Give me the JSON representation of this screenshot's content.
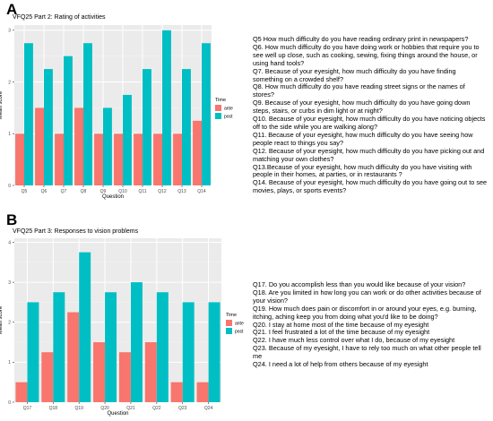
{
  "panels": [
    {
      "letter": "A",
      "notes": [
        "Q5 How much difficulty do you have reading ordinary print in newspapers?",
        "Q6. How much difficulty do you have doing work or hobbies that require you to see well up close, such as cooking, sewing, fixing things around the house, or using hand tools?",
        "Q7. Because of your eyesight, how much difficulty do you have finding something on a crowded shelf?",
        "Q8. How much difficulty do you have reading street signs or the names of stores?",
        "Q9. Because of your eyesight, how much difficulty do you have going down steps, stairs, or curbs in dim light or at night?",
        "Q10. Because of your eyesight, how much difficulty do you have noticing objects off to the side while you are walking along?",
        "Q11. Because of your eyesight, how much difficulty do you have seeing how people react to things you say?",
        "Q12. Because of your eyesight, how much difficulty do you have picking out and matching your own clothes?",
        "Q13.Because of your eyesight, how much difficulty do you have visiting with people in their homes, at parties, or in restaurants ?",
        "Q14. Because of your eyesight, how much difficulty do you have going out to see movies, plays, or sports events?"
      ]
    },
    {
      "letter": "B",
      "notes": [
        "Q17. Do you accomplish less than you would like because of your vision?",
        "Q18. Are you limited in how long you can work or do other activities because of your vision?",
        "Q19. How much does pain or discomfort in or around your eyes, e.g. burning, itching, aching keep you from doing what you'd like to be doing?",
        "Q20. I stay at home most of the time because of my eyesight",
        "Q21. I feel frustrated a lot of the time because of my eyesight",
        "Q22. I have much less control over what I do, because of my eyesight",
        "Q23. Because of my eyesight, I have to rely too much on what other people tell me",
        "Q24. I need a lot of help from others because of my eyesight"
      ]
    }
  ],
  "chart_data": [
    {
      "type": "bar",
      "title": "VFQ25 Part 2: Rating of activities",
      "xlabel": "Question",
      "ylabel": "Mean score",
      "ylim": [
        0,
        3.1
      ],
      "yticks": [
        0,
        1,
        2,
        3
      ],
      "grid": true,
      "legend": "right",
      "legend_title": "Time",
      "categories": [
        "Q5",
        "Q6",
        "Q7",
        "Q8",
        "Q9",
        "Q10",
        "Q11",
        "Q12",
        "Q13",
        "Q14"
      ],
      "series": [
        {
          "name": "ante",
          "color": "#F8766D",
          "values": [
            1,
            1.5,
            1,
            1.5,
            1,
            1,
            1,
            1,
            1,
            1.25
          ]
        },
        {
          "name": "post",
          "color": "#00BFC4",
          "values": [
            2.75,
            2.25,
            2.5,
            2.75,
            1.5,
            1.75,
            2.25,
            3,
            2.25,
            2.75
          ]
        }
      ]
    },
    {
      "type": "bar",
      "title": "VFQ25 Part 3: Responses to vision problems",
      "xlabel": "Question",
      "ylabel": "Mean score",
      "ylim": [
        0,
        4.1
      ],
      "yticks": [
        0,
        1,
        2,
        3,
        4
      ],
      "grid": true,
      "legend": "right",
      "legend_title": "Time",
      "categories": [
        "Q17",
        "Q18",
        "Q19",
        "Q20",
        "Q21",
        "Q22",
        "Q23",
        "Q24"
      ],
      "series": [
        {
          "name": "ante",
          "color": "#F8766D",
          "values": [
            0.5,
            1.25,
            2.25,
            1.5,
            1.25,
            1.5,
            0.5,
            0.5
          ]
        },
        {
          "name": "post",
          "color": "#00BFC4",
          "values": [
            2.5,
            2.75,
            3.75,
            2.75,
            3,
            2.75,
            2.5,
            2.5
          ]
        }
      ]
    }
  ]
}
